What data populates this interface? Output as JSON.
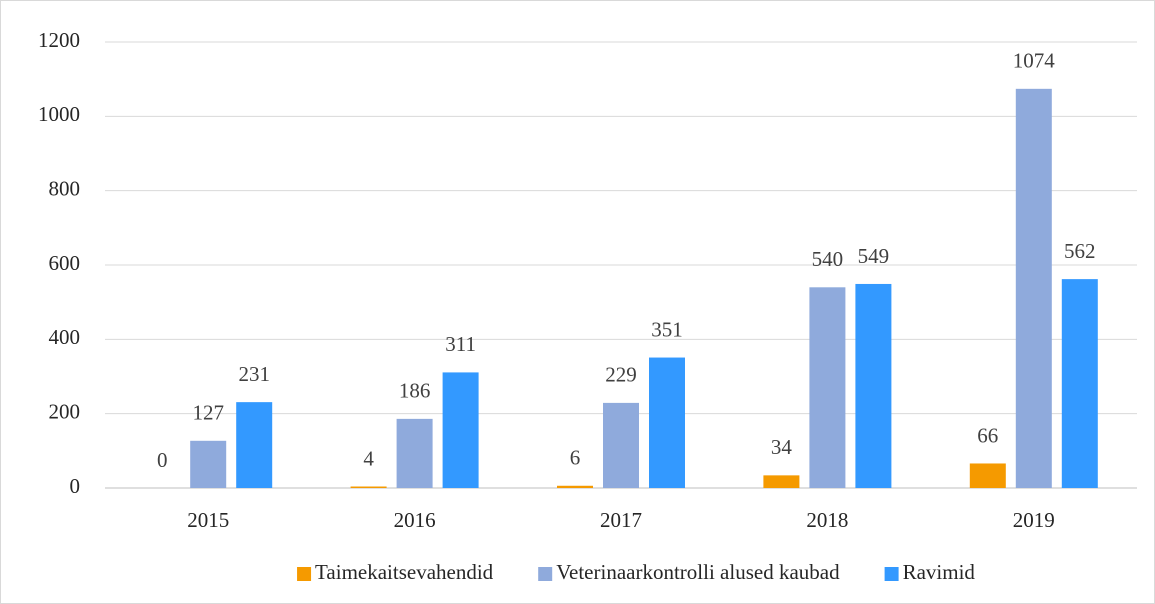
{
  "chart_data": {
    "type": "bar",
    "categories": [
      "2015",
      "2016",
      "2017",
      "2018",
      "2019"
    ],
    "series": [
      {
        "name": "Taimekaitsevahendid",
        "color": "#f59a00",
        "values": [
          0,
          4,
          6,
          34,
          66
        ]
      },
      {
        "name": "Veterinaarkontrolli alused kaubad",
        "color": "#8faadc",
        "values": [
          127,
          186,
          229,
          540,
          1074
        ]
      },
      {
        "name": "Ravimid",
        "color": "#3399ff",
        "values": [
          231,
          311,
          351,
          549,
          562
        ]
      }
    ],
    "ylim": [
      0,
      1200
    ],
    "yticks": [
      0,
      200,
      400,
      600,
      800,
      1000,
      1200
    ],
    "grid": true,
    "legend": "bottom"
  }
}
